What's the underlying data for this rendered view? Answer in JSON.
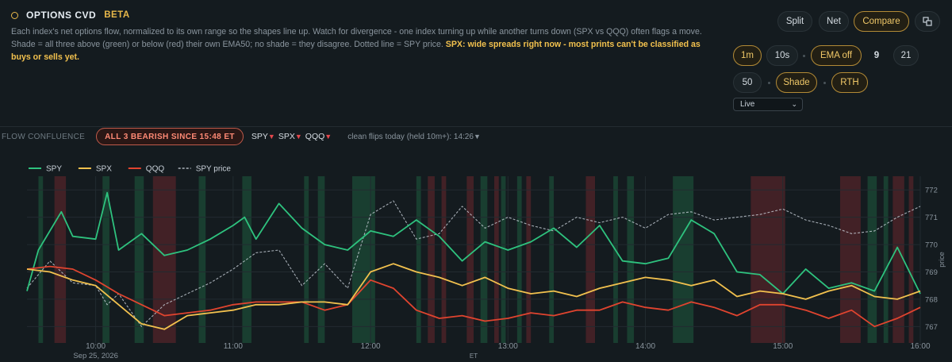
{
  "header": {
    "title": "OPTIONS CVD",
    "badge": "BETA"
  },
  "description": {
    "text": "Each index's net options flow, normalized to its own range so the shapes line up. Watch for divergence - one index turning up while another turns down (SPX vs QQQ) often flags a move. Shade = all three above (green) or below (red) their own EMA50; no shade = they disagree. Dotted line = SPY price.",
    "warning": "SPX: wide spreads right now - most prints can't be classified as buys or sells yet."
  },
  "controls": {
    "view": [
      {
        "label": "Split",
        "active": false
      },
      {
        "label": "Net",
        "active": false
      },
      {
        "label": "Compare",
        "active": true
      }
    ],
    "popout_icon": "popout-icon",
    "interval": [
      {
        "label": "1m",
        "active": true
      },
      {
        "label": "10s",
        "active": false
      }
    ],
    "ema_toggle": {
      "label": "EMA off",
      "active": true
    },
    "ema_periods": [
      {
        "label": "9",
        "active": false,
        "bold": true
      },
      {
        "label": "21",
        "active": false
      },
      {
        "label": "50",
        "active": false
      }
    ],
    "shade": {
      "label": "Shade",
      "active": true
    },
    "session": {
      "label": "RTH",
      "active": true
    },
    "mode_select": {
      "value": "Live"
    }
  },
  "confluence": {
    "label": "FLOW CONFLUENCE",
    "status": "ALL 3 BEARISH SINCE 15:48 ET",
    "indices": [
      {
        "name": "SPY",
        "arrow": "▼"
      },
      {
        "name": "SPX",
        "arrow": "▼"
      },
      {
        "name": "QQQ",
        "arrow": "▼"
      }
    ],
    "flips_text": "clean flips today (held 10m+): 14:26",
    "flips_arrow": "▼"
  },
  "colors": {
    "spy": "#2ec27e",
    "spx": "#f2c14e",
    "qqq": "#e0442f",
    "price": "#c9d1d9",
    "bull": "#1f6b45",
    "bear": "#7a2a2e"
  },
  "chart_data": {
    "type": "line",
    "xlabel": "ET",
    "ylabel": "price",
    "date": "Sep 25, 2026",
    "x_ticks": [
      "10:00",
      "11:00",
      "12:00",
      "13:00",
      "14:00",
      "15:00",
      "16:00"
    ],
    "x_range": [
      "09:30",
      "16:00"
    ],
    "y_ticks": [
      767,
      768,
      769,
      770,
      771,
      772
    ],
    "ylim": [
      766.4,
      772.5
    ],
    "legend": [
      "SPY",
      "SPX",
      "QQQ",
      "SPY price"
    ],
    "legend_position": "top-left",
    "series": [
      {
        "name": "SPY",
        "style": "solid",
        "points": [
          [
            "09:30",
            768.3
          ],
          [
            "09:35",
            769.8
          ],
          [
            "09:45",
            771.2
          ],
          [
            "09:50",
            770.3
          ],
          [
            "10:00",
            770.2
          ],
          [
            "10:05",
            771.9
          ],
          [
            "10:10",
            769.8
          ],
          [
            "10:20",
            770.4
          ],
          [
            "10:30",
            769.6
          ],
          [
            "10:40",
            769.8
          ],
          [
            "10:50",
            770.2
          ],
          [
            "11:00",
            770.7
          ],
          [
            "11:05",
            771.0
          ],
          [
            "11:10",
            770.2
          ],
          [
            "11:20",
            771.5
          ],
          [
            "11:30",
            770.6
          ],
          [
            "11:40",
            770.0
          ],
          [
            "11:50",
            769.8
          ],
          [
            "12:00",
            770.5
          ],
          [
            "12:10",
            770.3
          ],
          [
            "12:20",
            770.9
          ],
          [
            "12:30",
            770.3
          ],
          [
            "12:40",
            769.4
          ],
          [
            "12:50",
            770.1
          ],
          [
            "13:00",
            769.8
          ],
          [
            "13:10",
            770.1
          ],
          [
            "13:20",
            770.6
          ],
          [
            "13:30",
            769.9
          ],
          [
            "13:40",
            770.7
          ],
          [
            "13:50",
            769.4
          ],
          [
            "14:00",
            769.3
          ],
          [
            "14:10",
            769.5
          ],
          [
            "14:20",
            770.9
          ],
          [
            "14:30",
            770.4
          ],
          [
            "14:40",
            769.0
          ],
          [
            "14:50",
            768.9
          ],
          [
            "15:00",
            768.2
          ],
          [
            "15:10",
            769.1
          ],
          [
            "15:20",
            768.4
          ],
          [
            "15:30",
            768.6
          ],
          [
            "15:40",
            768.3
          ],
          [
            "15:50",
            769.9
          ],
          [
            "16:00",
            768.2
          ]
        ]
      },
      {
        "name": "SPX",
        "style": "solid",
        "points": [
          [
            "09:30",
            769.1
          ],
          [
            "09:40",
            769.0
          ],
          [
            "09:50",
            768.7
          ],
          [
            "10:00",
            768.5
          ],
          [
            "10:10",
            767.8
          ],
          [
            "10:20",
            767.1
          ],
          [
            "10:30",
            766.9
          ],
          [
            "10:40",
            767.4
          ],
          [
            "10:50",
            767.5
          ],
          [
            "11:00",
            767.6
          ],
          [
            "11:10",
            767.8
          ],
          [
            "11:20",
            767.8
          ],
          [
            "11:30",
            767.9
          ],
          [
            "11:40",
            767.9
          ],
          [
            "11:50",
            767.8
          ],
          [
            "12:00",
            769.0
          ],
          [
            "12:10",
            769.3
          ],
          [
            "12:20",
            769.0
          ],
          [
            "12:30",
            768.8
          ],
          [
            "12:40",
            768.5
          ],
          [
            "12:50",
            768.8
          ],
          [
            "13:00",
            768.4
          ],
          [
            "13:10",
            768.2
          ],
          [
            "13:20",
            768.3
          ],
          [
            "13:30",
            768.1
          ],
          [
            "13:40",
            768.4
          ],
          [
            "13:50",
            768.6
          ],
          [
            "14:00",
            768.8
          ],
          [
            "14:10",
            768.7
          ],
          [
            "14:20",
            768.5
          ],
          [
            "14:30",
            768.7
          ],
          [
            "14:40",
            768.1
          ],
          [
            "14:50",
            768.3
          ],
          [
            "15:00",
            768.2
          ],
          [
            "15:10",
            768.0
          ],
          [
            "15:20",
            768.3
          ],
          [
            "15:30",
            768.5
          ],
          [
            "15:40",
            768.1
          ],
          [
            "15:50",
            768.0
          ],
          [
            "16:00",
            768.3
          ]
        ]
      },
      {
        "name": "QQQ",
        "style": "solid",
        "points": [
          [
            "09:30",
            769.1
          ],
          [
            "09:40",
            769.2
          ],
          [
            "09:50",
            769.1
          ],
          [
            "10:00",
            768.7
          ],
          [
            "10:10",
            768.2
          ],
          [
            "10:20",
            767.8
          ],
          [
            "10:30",
            767.4
          ],
          [
            "10:40",
            767.5
          ],
          [
            "10:50",
            767.6
          ],
          [
            "11:00",
            767.8
          ],
          [
            "11:10",
            767.9
          ],
          [
            "11:20",
            767.9
          ],
          [
            "11:30",
            767.9
          ],
          [
            "11:40",
            767.6
          ],
          [
            "11:50",
            767.8
          ],
          [
            "12:00",
            768.7
          ],
          [
            "12:10",
            768.4
          ],
          [
            "12:20",
            767.6
          ],
          [
            "12:30",
            767.3
          ],
          [
            "12:40",
            767.4
          ],
          [
            "12:50",
            767.2
          ],
          [
            "13:00",
            767.3
          ],
          [
            "13:10",
            767.5
          ],
          [
            "13:20",
            767.4
          ],
          [
            "13:30",
            767.6
          ],
          [
            "13:40",
            767.6
          ],
          [
            "13:50",
            767.9
          ],
          [
            "14:00",
            767.7
          ],
          [
            "14:10",
            767.6
          ],
          [
            "14:20",
            767.9
          ],
          [
            "14:30",
            767.7
          ],
          [
            "14:40",
            767.4
          ],
          [
            "14:50",
            767.8
          ],
          [
            "15:00",
            767.8
          ],
          [
            "15:10",
            767.6
          ],
          [
            "15:20",
            767.3
          ],
          [
            "15:30",
            767.6
          ],
          [
            "15:40",
            767.0
          ],
          [
            "15:50",
            767.3
          ],
          [
            "16:00",
            767.7
          ]
        ]
      },
      {
        "name": "SPY price",
        "style": "dotted",
        "points": [
          [
            "09:30",
            768.4
          ],
          [
            "09:40",
            769.4
          ],
          [
            "09:50",
            768.6
          ],
          [
            "10:00",
            768.5
          ],
          [
            "10:05",
            767.8
          ],
          [
            "10:10",
            768.2
          ],
          [
            "10:20",
            767.0
          ],
          [
            "10:30",
            767.8
          ],
          [
            "10:40",
            768.2
          ],
          [
            "10:50",
            768.6
          ],
          [
            "11:00",
            769.1
          ],
          [
            "11:10",
            769.7
          ],
          [
            "11:20",
            769.8
          ],
          [
            "11:30",
            768.5
          ],
          [
            "11:40",
            769.3
          ],
          [
            "11:50",
            768.4
          ],
          [
            "12:00",
            771.1
          ],
          [
            "12:10",
            771.6
          ],
          [
            "12:20",
            770.2
          ],
          [
            "12:30",
            770.4
          ],
          [
            "12:40",
            771.4
          ],
          [
            "12:50",
            770.6
          ],
          [
            "13:00",
            771.0
          ],
          [
            "13:10",
            770.7
          ],
          [
            "13:20",
            770.5
          ],
          [
            "13:30",
            771.0
          ],
          [
            "13:40",
            770.8
          ],
          [
            "13:50",
            771.0
          ],
          [
            "14:00",
            770.6
          ],
          [
            "14:10",
            771.1
          ],
          [
            "14:20",
            771.2
          ],
          [
            "14:30",
            770.9
          ],
          [
            "14:40",
            771.0
          ],
          [
            "14:50",
            771.1
          ],
          [
            "15:00",
            771.3
          ],
          [
            "15:10",
            770.9
          ],
          [
            "15:20",
            770.7
          ],
          [
            "15:30",
            770.4
          ],
          [
            "15:40",
            770.5
          ],
          [
            "15:50",
            771.0
          ],
          [
            "16:00",
            771.4
          ]
        ]
      }
    ],
    "shade_bands": [
      {
        "start": "09:35",
        "end": "09:37",
        "state": "bull"
      },
      {
        "start": "09:42",
        "end": "09:47",
        "state": "bear"
      },
      {
        "start": "10:03",
        "end": "10:06",
        "state": "bull"
      },
      {
        "start": "10:17",
        "end": "10:21",
        "state": "bull"
      },
      {
        "start": "10:25",
        "end": "10:35",
        "state": "bear"
      },
      {
        "start": "10:45",
        "end": "10:48",
        "state": "bull"
      },
      {
        "start": "11:04",
        "end": "11:08",
        "state": "bull"
      },
      {
        "start": "11:31",
        "end": "11:33",
        "state": "bull"
      },
      {
        "start": "11:37",
        "end": "11:40",
        "state": "bull"
      },
      {
        "start": "11:52",
        "end": "12:02",
        "state": "bull"
      },
      {
        "start": "12:20",
        "end": "12:22",
        "state": "bull"
      },
      {
        "start": "12:25",
        "end": "12:28",
        "state": "bear"
      },
      {
        "start": "12:31",
        "end": "12:33",
        "state": "bear"
      },
      {
        "start": "12:42",
        "end": "12:45",
        "state": "bear"
      },
      {
        "start": "12:48",
        "end": "12:51",
        "state": "bull"
      },
      {
        "start": "12:54",
        "end": "12:56",
        "state": "bear"
      },
      {
        "start": "12:57",
        "end": "12:59",
        "state": "bull"
      },
      {
        "start": "13:04",
        "end": "13:06",
        "state": "bull"
      },
      {
        "start": "13:08",
        "end": "13:10",
        "state": "bear"
      },
      {
        "start": "13:18",
        "end": "13:20",
        "state": "bull"
      },
      {
        "start": "13:34",
        "end": "13:38",
        "state": "bear"
      },
      {
        "start": "13:46",
        "end": "13:48",
        "state": "bull"
      },
      {
        "start": "13:52",
        "end": "13:55",
        "state": "bull"
      },
      {
        "start": "14:12",
        "end": "14:21",
        "state": "bull"
      },
      {
        "start": "14:46",
        "end": "15:01",
        "state": "bear"
      },
      {
        "start": "15:25",
        "end": "15:34",
        "state": "bear"
      },
      {
        "start": "15:37",
        "end": "15:41",
        "state": "bull"
      },
      {
        "start": "15:44",
        "end": "15:46",
        "state": "bull"
      },
      {
        "start": "15:48",
        "end": "15:53",
        "state": "bear"
      },
      {
        "start": "15:55",
        "end": "15:57",
        "state": "bear"
      }
    ]
  }
}
